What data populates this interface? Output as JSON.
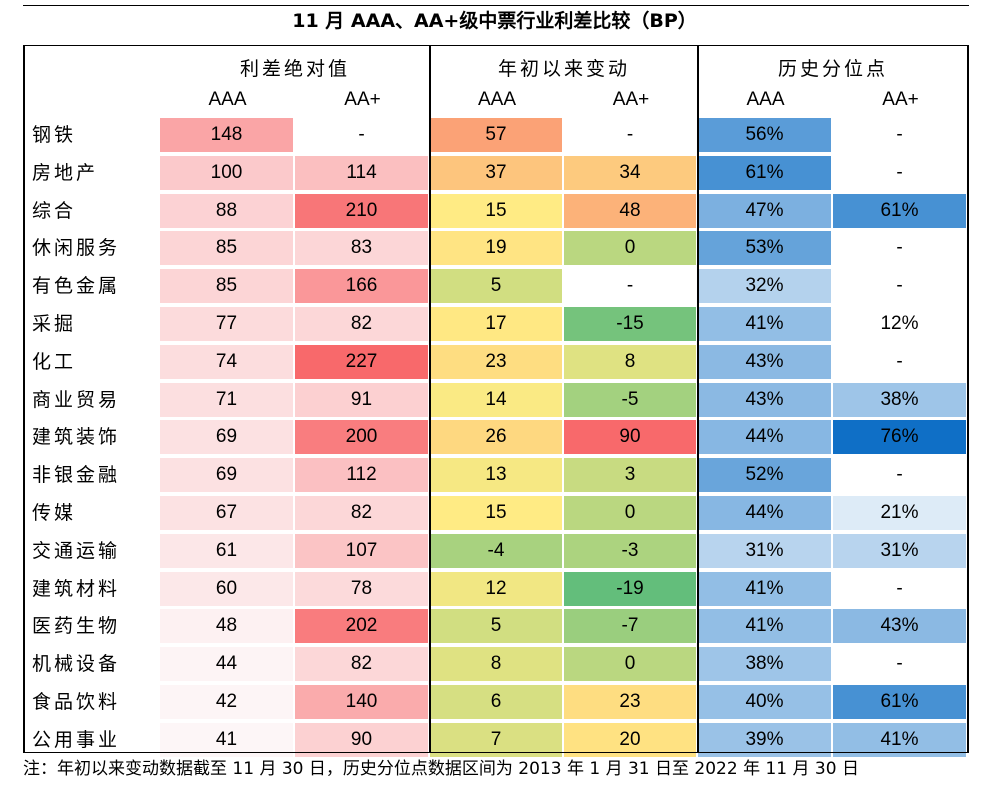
{
  "chart_data": {
    "type": "table",
    "title": "11 月 AAA、AA+级中票行业利差比较（BP）",
    "groups": [
      "利差绝对值",
      "年初以来变动",
      "历史分位点"
    ],
    "sub_columns": [
      "AAA",
      "AA+"
    ],
    "rows": [
      {
        "label": "钢铁",
        "spread": [
          "148",
          "-"
        ],
        "change": [
          "57",
          "-"
        ],
        "pct": [
          "56%",
          "-"
        ]
      },
      {
        "label": "房地产",
        "spread": [
          "100",
          "114"
        ],
        "change": [
          "37",
          "34"
        ],
        "pct": [
          "61%",
          "-"
        ]
      },
      {
        "label": "综合",
        "spread": [
          "88",
          "210"
        ],
        "change": [
          "15",
          "48"
        ],
        "pct": [
          "47%",
          "61%"
        ]
      },
      {
        "label": "休闲服务",
        "spread": [
          "85",
          "83"
        ],
        "change": [
          "19",
          "0"
        ],
        "pct": [
          "53%",
          "-"
        ]
      },
      {
        "label": "有色金属",
        "spread": [
          "85",
          "166"
        ],
        "change": [
          "5",
          "-"
        ],
        "pct": [
          "32%",
          "-"
        ]
      },
      {
        "label": "采掘",
        "spread": [
          "77",
          "82"
        ],
        "change": [
          "17",
          "-15"
        ],
        "pct": [
          "41%",
          "12%"
        ]
      },
      {
        "label": "化工",
        "spread": [
          "74",
          "227"
        ],
        "change": [
          "23",
          "8"
        ],
        "pct": [
          "43%",
          "-"
        ]
      },
      {
        "label": "商业贸易",
        "spread": [
          "71",
          "91"
        ],
        "change": [
          "14",
          "-5"
        ],
        "pct": [
          "43%",
          "38%"
        ]
      },
      {
        "label": "建筑装饰",
        "spread": [
          "69",
          "200"
        ],
        "change": [
          "26",
          "90"
        ],
        "pct": [
          "44%",
          "76%"
        ]
      },
      {
        "label": "非银金融",
        "spread": [
          "69",
          "112"
        ],
        "change": [
          "13",
          "3"
        ],
        "pct": [
          "52%",
          "-"
        ]
      },
      {
        "label": "传媒",
        "spread": [
          "67",
          "82"
        ],
        "change": [
          "15",
          "0"
        ],
        "pct": [
          "44%",
          "21%"
        ]
      },
      {
        "label": "交通运输",
        "spread": [
          "61",
          "107"
        ],
        "change": [
          "-4",
          "-3"
        ],
        "pct": [
          "31%",
          "31%"
        ]
      },
      {
        "label": "建筑材料",
        "spread": [
          "60",
          "78"
        ],
        "change": [
          "12",
          "-19"
        ],
        "pct": [
          "41%",
          "-"
        ]
      },
      {
        "label": "医药生物",
        "spread": [
          "48",
          "202"
        ],
        "change": [
          "5",
          "-7"
        ],
        "pct": [
          "41%",
          "43%"
        ]
      },
      {
        "label": "机械设备",
        "spread": [
          "44",
          "82"
        ],
        "change": [
          "8",
          "0"
        ],
        "pct": [
          "38%",
          "-"
        ]
      },
      {
        "label": "食品饮料",
        "spread": [
          "42",
          "140"
        ],
        "change": [
          "6",
          "23"
        ],
        "pct": [
          "40%",
          "61%"
        ]
      },
      {
        "label": "公用事业",
        "spread": [
          "41",
          "90"
        ],
        "change": [
          "7",
          "20"
        ],
        "pct": [
          "39%",
          "41%"
        ]
      }
    ],
    "colors": {
      "spread_low": "#fdf6f7",
      "spread_high": "#f8696b",
      "change_low": "#63be7b",
      "change_mid": "#ffeb84",
      "change_high": "#f8696b",
      "pct_low": "#ffffff",
      "pct_high": "#0f6fc6"
    }
  },
  "footnote": "注：年初以来变动数据截至 11 月 30 日，历史分位点数据区间为 2013 年 1 月 31 日至 2022 年 11 月 30 日"
}
